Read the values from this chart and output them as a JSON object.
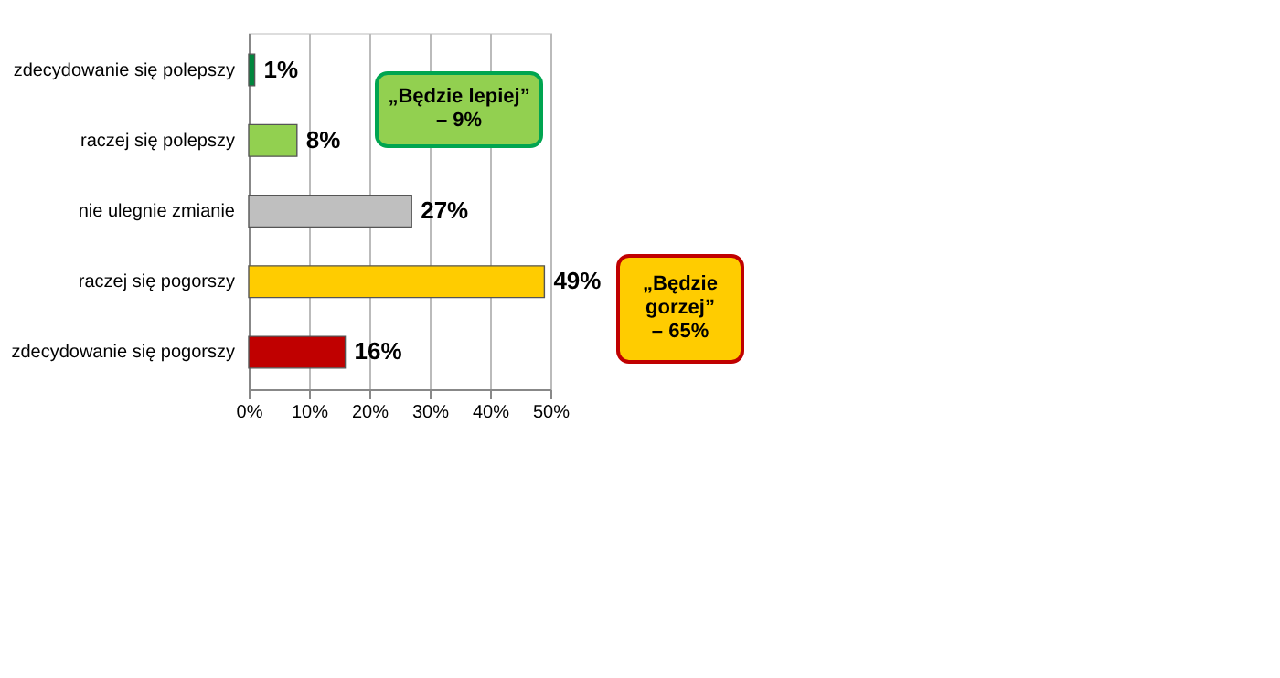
{
  "chart_data": {
    "type": "bar",
    "orientation": "horizontal",
    "categories": [
      "zdecydowanie się polepszy",
      "raczej się polepszy",
      "nie ulegnie zmianie",
      "raczej się pogorszy",
      "zdecydowanie się pogorszy"
    ],
    "values": [
      1,
      8,
      27,
      49,
      16
    ],
    "colors": [
      "#00863d",
      "#92d050",
      "#bfbfbf",
      "#ffcc00",
      "#c00000"
    ],
    "value_labels": [
      "1%",
      "8%",
      "27%",
      "49%",
      "16%"
    ],
    "xlim": [
      0,
      50
    ],
    "xticks": [
      {
        "value": 0,
        "label": "0%"
      },
      {
        "value": 10,
        "label": "10%"
      },
      {
        "value": 20,
        "label": "20%"
      },
      {
        "value": 30,
        "label": "30%"
      },
      {
        "value": 40,
        "label": "40%"
      },
      {
        "value": 50,
        "label": "50%"
      }
    ],
    "grid": "x",
    "annotations": [
      "„Będzie lepiej”\n– 9%",
      "„Będzie\ngorzej”\n– 65%"
    ]
  }
}
